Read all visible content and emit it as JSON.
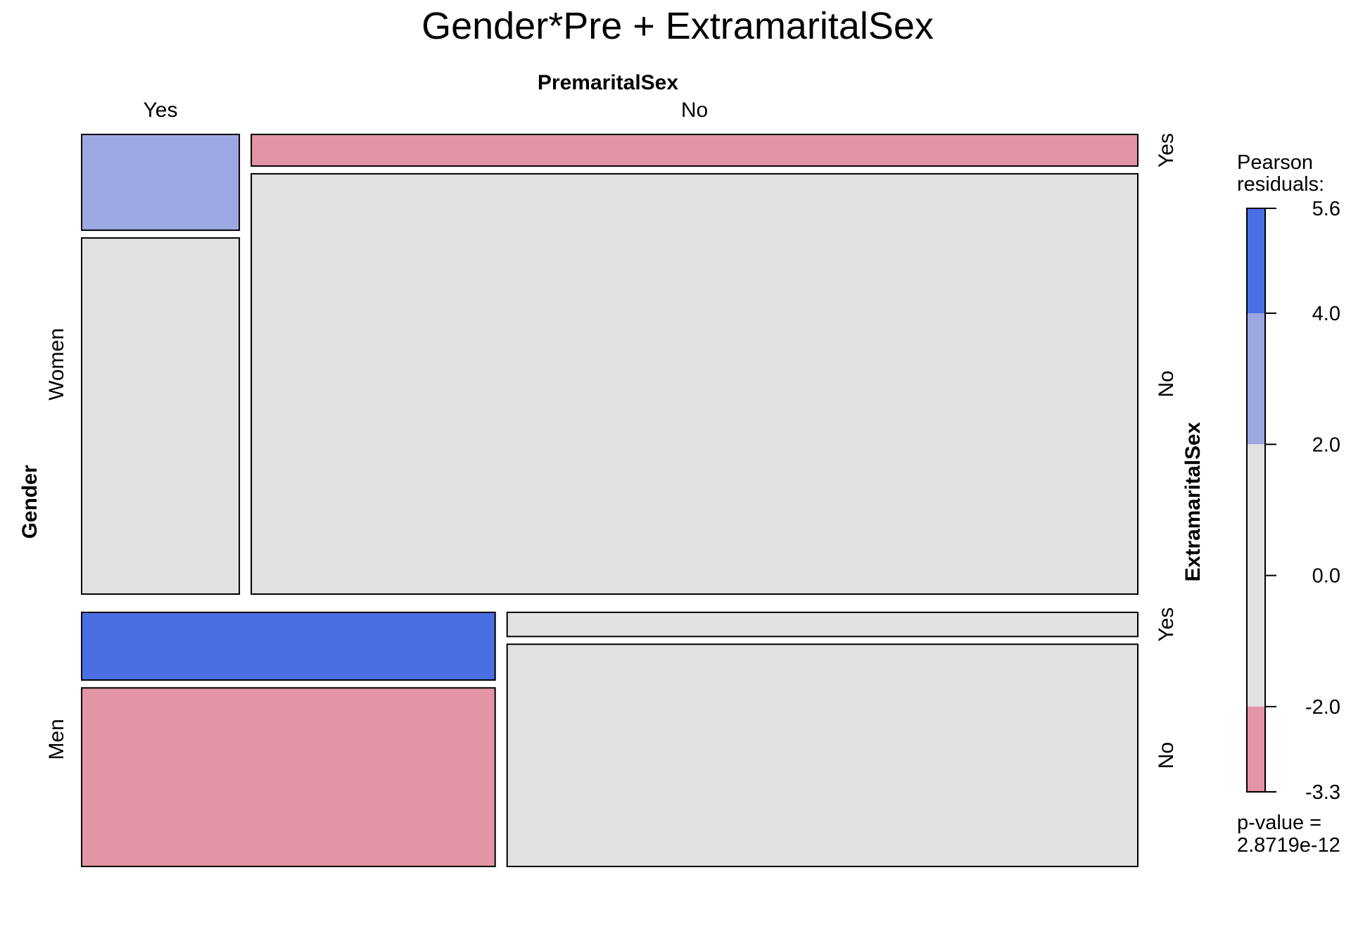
{
  "chart_data": {
    "type": "mosaic",
    "title": "Gender*Pre + ExtramaritalSex",
    "variables": {
      "columns": {
        "name": "PremaritalSex",
        "levels": [
          "Yes",
          "No"
        ]
      },
      "rows": {
        "name": "Gender",
        "levels": [
          "Women",
          "Men"
        ]
      },
      "sublevels": {
        "name": "ExtramaritalSex",
        "levels": [
          "Yes",
          "No"
        ]
      }
    },
    "gender_proportions": {
      "Women": 0.644,
      "Men": 0.356
    },
    "premarital_yes_share": {
      "Women": 0.151,
      "Men": 0.396
    },
    "cells": [
      {
        "gender": "Women",
        "premarital": "Yes",
        "extramarital": "Yes",
        "share": 0.212,
        "shade": "positive-medium"
      },
      {
        "gender": "Women",
        "premarital": "Yes",
        "extramarital": "No",
        "share": 0.788,
        "shade": "neutral"
      },
      {
        "gender": "Women",
        "premarital": "No",
        "extramarital": "Yes",
        "share": 0.07,
        "shade": "negative"
      },
      {
        "gender": "Women",
        "premarital": "No",
        "extramarital": "No",
        "share": 0.93,
        "shade": "neutral"
      },
      {
        "gender": "Men",
        "premarital": "Yes",
        "extramarital": "Yes",
        "share": 0.275,
        "shade": "positive-strong"
      },
      {
        "gender": "Men",
        "premarital": "Yes",
        "extramarital": "No",
        "share": 0.725,
        "shade": "negative"
      },
      {
        "gender": "Men",
        "premarital": "No",
        "extramarital": "Yes",
        "share": 0.098,
        "shade": "neutral"
      },
      {
        "gender": "Men",
        "premarital": "No",
        "extramarital": "No",
        "share": 0.902,
        "shade": "neutral"
      }
    ],
    "colors": {
      "positive-strong": "#4a6fe3",
      "positive-medium": "#9da8e2",
      "neutral": "#e2e2e2",
      "negative": "#e394a6"
    },
    "legend": {
      "title_lines": [
        "Pearson",
        "residuals:"
      ],
      "min": -3.3,
      "max": 5.6,
      "ticks": [
        5.6,
        4.0,
        2.0,
        0.0,
        -2.0,
        -3.3
      ],
      "tick_labels": [
        "5.6",
        "4.0",
        "2.0",
        "0.0",
        "-2.0",
        "-3.3"
      ],
      "bands": [
        {
          "from": 4.0,
          "to": 5.6,
          "shade": "positive-strong"
        },
        {
          "from": 2.0,
          "to": 4.0,
          "shade": "positive-medium"
        },
        {
          "from": -2.0,
          "to": 2.0,
          "shade": "neutral"
        },
        {
          "from": -3.3,
          "to": -2.0,
          "shade": "negative"
        }
      ],
      "pvalue_lines": [
        "p-value =",
        "2.8719e-12"
      ]
    }
  }
}
